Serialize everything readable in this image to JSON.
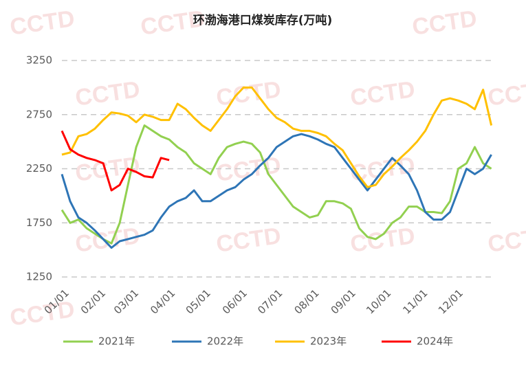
{
  "chart_data": {
    "type": "line",
    "title": "环渤海港口煤炭库存(万吨)",
    "watermark": "CCTD",
    "x": [
      0,
      7,
      14,
      21,
      28,
      35,
      42,
      49,
      56,
      63,
      70,
      77,
      84,
      91,
      98,
      105,
      112,
      119,
      126,
      133,
      140,
      147,
      154,
      161,
      168,
      175,
      182,
      189,
      196,
      203,
      210,
      217,
      224,
      231,
      238,
      245,
      252,
      259,
      266,
      273,
      280,
      287,
      294,
      301,
      308,
      315,
      322,
      329,
      336,
      343,
      350,
      357,
      364
    ],
    "xlim": [
      0,
      366
    ],
    "xticks": [
      {
        "value": 0,
        "label": "01/01"
      },
      {
        "value": 31,
        "label": "02/01"
      },
      {
        "value": 59,
        "label": "03/01"
      },
      {
        "value": 90,
        "label": "04/01"
      },
      {
        "value": 120,
        "label": "05/01"
      },
      {
        "value": 151,
        "label": "06/01"
      },
      {
        "value": 181,
        "label": "07/01"
      },
      {
        "value": 212,
        "label": "08/01"
      },
      {
        "value": 243,
        "label": "09/01"
      },
      {
        "value": 273,
        "label": "10/01"
      },
      {
        "value": 304,
        "label": "11/01"
      },
      {
        "value": 334,
        "label": "12/01"
      }
    ],
    "ylim": [
      1250,
      3250
    ],
    "yticks": [
      1250,
      1750,
      2250,
      2750,
      3250
    ],
    "grid": true,
    "legend": "bottom",
    "series": [
      {
        "name": "2021年",
        "color": "#92d050",
        "values": [
          1870,
          1750,
          1780,
          1700,
          1650,
          1600,
          1560,
          1750,
          2100,
          2450,
          2650,
          2600,
          2550,
          2520,
          2450,
          2400,
          2300,
          2250,
          2200,
          2350,
          2450,
          2480,
          2500,
          2480,
          2400,
          2200,
          2100,
          2000,
          1900,
          1850,
          1800,
          1820,
          1950,
          1950,
          1930,
          1880,
          1700,
          1620,
          1600,
          1650,
          1750,
          1800,
          1900,
          1900,
          1850,
          1850,
          1840,
          1950,
          2250,
          2300,
          2450,
          2300,
          2250
        ]
      },
      {
        "name": "2022年",
        "color": "#2e75b6",
        "values": [
          2200,
          1950,
          1800,
          1750,
          1680,
          1600,
          1520,
          1580,
          1600,
          1620,
          1640,
          1680,
          1800,
          1900,
          1950,
          1980,
          2050,
          1950,
          1950,
          2000,
          2050,
          2080,
          2150,
          2200,
          2280,
          2350,
          2450,
          2500,
          2550,
          2570,
          2550,
          2520,
          2480,
          2450,
          2350,
          2250,
          2150,
          2050,
          2150,
          2250,
          2350,
          2280,
          2200,
          2050,
          1850,
          1780,
          1780,
          1850,
          2050,
          2250,
          2200,
          2250,
          2380
        ]
      },
      {
        "name": "2023年",
        "color": "#ffc000",
        "values": [
          2380,
          2400,
          2550,
          2570,
          2620,
          2700,
          2770,
          2760,
          2740,
          2680,
          2750,
          2730,
          2700,
          2700,
          2850,
          2800,
          2720,
          2650,
          2600,
          2700,
          2800,
          2920,
          3000,
          3000,
          2900,
          2800,
          2720,
          2680,
          2620,
          2600,
          2600,
          2580,
          2550,
          2480,
          2420,
          2300,
          2180,
          2080,
          2100,
          2200,
          2270,
          2350,
          2420,
          2500,
          2600,
          2750,
          2880,
          2900,
          2880,
          2850,
          2800,
          2980,
          2650
        ]
      },
      {
        "name": "2024年",
        "color": "#ff0000",
        "values": [
          2600,
          2430,
          2380,
          2350,
          2330,
          2300,
          2050,
          2100,
          2250,
          2220,
          2180,
          2170,
          2350,
          2330,
          null,
          null,
          null,
          null,
          null,
          null,
          null,
          null,
          null,
          null,
          null,
          null,
          null,
          null,
          null,
          null,
          null,
          null,
          null,
          null,
          null,
          null,
          null,
          null,
          null,
          null,
          null,
          null,
          null,
          null,
          null,
          null,
          null,
          null,
          null,
          null,
          null,
          null,
          null
        ]
      }
    ]
  }
}
